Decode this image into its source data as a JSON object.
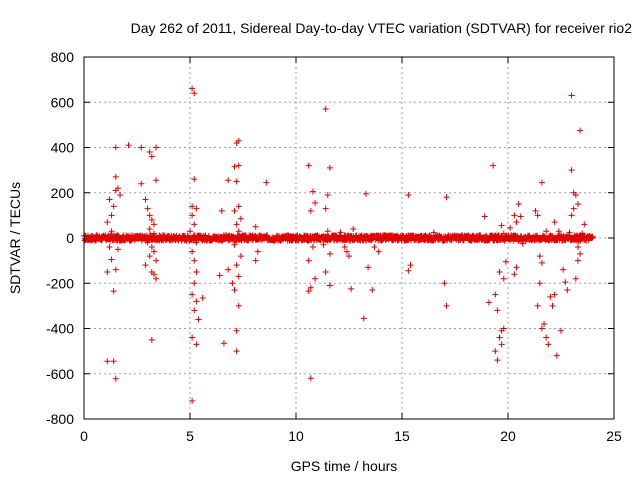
{
  "chart_data": {
    "type": "scatter",
    "title": "Day 262 of 2011, Sidereal Day-to-day VTEC variation (SDTVAR) for receiver rio2",
    "xlabel": "GPS time / hours",
    "ylabel": "SDTVAR / TECUs",
    "xlim": [
      0,
      25
    ],
    "ylim": [
      -800,
      800
    ],
    "x_ticks": [
      0,
      5,
      10,
      15,
      20,
      25
    ],
    "y_ticks": [
      -800,
      -600,
      -400,
      -200,
      0,
      200,
      400,
      600,
      800
    ],
    "grid": true,
    "marker": "+",
    "color": "#e00000",
    "band": {
      "x_start": 0,
      "x_end": 24,
      "y_center": 0,
      "spread": 12
    },
    "series": [
      {
        "name": "SDTVAR",
        "points": [
          [
            1.1,
            -545
          ],
          [
            1.4,
            -545
          ],
          [
            1.5,
            -622
          ],
          [
            1.4,
            -235
          ],
          [
            1.5,
            -140
          ],
          [
            1.1,
            -150
          ],
          [
            1.3,
            -95
          ],
          [
            1.2,
            -40
          ],
          [
            1.6,
            -50
          ],
          [
            1.3,
            30
          ],
          [
            1.1,
            70
          ],
          [
            1.3,
            100
          ],
          [
            1.4,
            140
          ],
          [
            1.5,
            210
          ],
          [
            1.6,
            220
          ],
          [
            1.7,
            190
          ],
          [
            1.5,
            270
          ],
          [
            1.5,
            400
          ],
          [
            1.2,
            170
          ],
          [
            2.1,
            410
          ],
          [
            2.7,
            400
          ],
          [
            3.1,
            380
          ],
          [
            3.2,
            360
          ],
          [
            3.4,
            400
          ],
          [
            3.4,
            255
          ],
          [
            2.7,
            240
          ],
          [
            2.9,
            170
          ],
          [
            3.0,
            130
          ],
          [
            3.1,
            100
          ],
          [
            3.2,
            80
          ],
          [
            3.3,
            60
          ],
          [
            3.1,
            40
          ],
          [
            3.3,
            20
          ],
          [
            3.0,
            -20
          ],
          [
            3.2,
            -40
          ],
          [
            3.3,
            -60
          ],
          [
            3.1,
            -80
          ],
          [
            3.4,
            -100
          ],
          [
            3.2,
            -150
          ],
          [
            3.4,
            -180
          ],
          [
            3.3,
            -160
          ],
          [
            3.2,
            -450
          ],
          [
            2.9,
            -120
          ],
          [
            5.1,
            660
          ],
          [
            5.2,
            640
          ],
          [
            5.2,
            260
          ],
          [
            5.1,
            140
          ],
          [
            5.3,
            130
          ],
          [
            5.1,
            100
          ],
          [
            5.2,
            60
          ],
          [
            5.0,
            30
          ],
          [
            5.3,
            -20
          ],
          [
            5.1,
            -60
          ],
          [
            5.2,
            -100
          ],
          [
            5.3,
            -150
          ],
          [
            5.2,
            -200
          ],
          [
            5.1,
            -250
          ],
          [
            5.3,
            -280
          ],
          [
            5.2,
            -320
          ],
          [
            5.4,
            -360
          ],
          [
            5.1,
            -440
          ],
          [
            5.3,
            -470
          ],
          [
            5.1,
            -720
          ],
          [
            5.6,
            -265
          ],
          [
            6.5,
            120
          ],
          [
            6.4,
            -165
          ],
          [
            6.8,
            255
          ],
          [
            7.2,
            420
          ],
          [
            7.3,
            430
          ],
          [
            7.1,
            315
          ],
          [
            7.3,
            320
          ],
          [
            7.2,
            250
          ],
          [
            7.3,
            140
          ],
          [
            7.1,
            120
          ],
          [
            7.4,
            85
          ],
          [
            7.2,
            60
          ],
          [
            7.3,
            30
          ],
          [
            7.1,
            -30
          ],
          [
            7.4,
            -80
          ],
          [
            7.2,
            -120
          ],
          [
            7.3,
            -170
          ],
          [
            7.1,
            -230
          ],
          [
            7.3,
            -300
          ],
          [
            7.2,
            -410
          ],
          [
            7.2,
            -500
          ],
          [
            6.6,
            -465
          ],
          [
            7.0,
            -200
          ],
          [
            6.8,
            -140
          ],
          [
            8.1,
            50
          ],
          [
            8.6,
            245
          ],
          [
            8.2,
            -60
          ],
          [
            8.1,
            -100
          ],
          [
            10.6,
            320
          ],
          [
            10.8,
            205
          ],
          [
            10.9,
            155
          ],
          [
            10.7,
            120
          ],
          [
            10.8,
            -40
          ],
          [
            10.6,
            -100
          ],
          [
            10.9,
            -180
          ],
          [
            10.7,
            -220
          ],
          [
            10.6,
            -235
          ],
          [
            10.7,
            -620
          ],
          [
            11.4,
            570
          ],
          [
            11.6,
            310
          ],
          [
            11.5,
            190
          ],
          [
            11.4,
            130
          ],
          [
            11.5,
            30
          ],
          [
            11.3,
            -30
          ],
          [
            11.6,
            -70
          ],
          [
            11.4,
            -150
          ],
          [
            11.6,
            -210
          ],
          [
            11.5,
            -10
          ],
          [
            12.1,
            25
          ],
          [
            12.3,
            -40
          ],
          [
            12.4,
            -60
          ],
          [
            12.5,
            -80
          ],
          [
            12.6,
            -225
          ],
          [
            12.7,
            40
          ],
          [
            13.3,
            195
          ],
          [
            13.4,
            -130
          ],
          [
            13.6,
            -230
          ],
          [
            13.2,
            -355
          ],
          [
            13.7,
            -40
          ],
          [
            13.9,
            -60
          ],
          [
            15.3,
            190
          ],
          [
            15.4,
            -120
          ],
          [
            15.3,
            -145
          ],
          [
            16.5,
            25
          ],
          [
            17.1,
            180
          ],
          [
            17.0,
            -200
          ],
          [
            17.1,
            -300
          ],
          [
            18.9,
            95
          ],
          [
            19.1,
            -285
          ],
          [
            19.3,
            320
          ],
          [
            19.4,
            -250
          ],
          [
            19.5,
            -320
          ],
          [
            19.4,
            -500
          ],
          [
            19.5,
            -540
          ],
          [
            19.6,
            -440
          ],
          [
            19.7,
            -470
          ],
          [
            19.8,
            -400
          ],
          [
            19.7,
            -410
          ],
          [
            19.9,
            -105
          ],
          [
            19.8,
            -180
          ],
          [
            19.6,
            -150
          ],
          [
            19.7,
            55
          ],
          [
            19.8,
            20
          ],
          [
            20.3,
            100
          ],
          [
            20.4,
            -130
          ],
          [
            20.3,
            -160
          ],
          [
            20.5,
            150
          ],
          [
            20.6,
            95
          ],
          [
            20.1,
            45
          ],
          [
            20.4,
            70
          ],
          [
            20.7,
            -25
          ],
          [
            21.3,
            120
          ],
          [
            21.4,
            100
          ],
          [
            21.6,
            245
          ],
          [
            21.5,
            -80
          ],
          [
            21.6,
            -110
          ],
          [
            21.5,
            -200
          ],
          [
            21.4,
            -300
          ],
          [
            21.7,
            -380
          ],
          [
            21.6,
            -400
          ],
          [
            21.8,
            -440
          ],
          [
            21.9,
            -470
          ],
          [
            22.0,
            -260
          ],
          [
            22.2,
            -250
          ],
          [
            22.1,
            -300
          ],
          [
            22.3,
            -520
          ],
          [
            22.5,
            -410
          ],
          [
            22.4,
            30
          ],
          [
            22.6,
            -140
          ],
          [
            22.7,
            -195
          ],
          [
            22.8,
            -230
          ],
          [
            22.9,
            25
          ],
          [
            23.0,
            100
          ],
          [
            23.1,
            200
          ],
          [
            23.0,
            300
          ],
          [
            23.2,
            190
          ],
          [
            23.1,
            130
          ],
          [
            23.3,
            150
          ],
          [
            23.0,
            630
          ],
          [
            23.4,
            475
          ],
          [
            23.2,
            -180
          ],
          [
            23.3,
            -100
          ],
          [
            23.4,
            -70
          ],
          [
            23.3,
            -40
          ],
          [
            23.5,
            20
          ],
          [
            23.6,
            60
          ],
          [
            22.2,
            70
          ],
          [
            21.8,
            30
          ]
        ]
      }
    ]
  }
}
